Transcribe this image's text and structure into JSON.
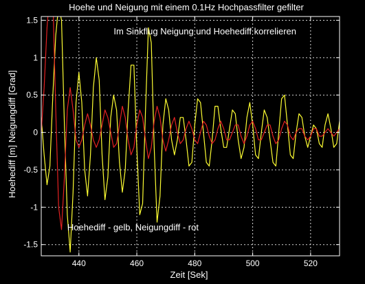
{
  "chart_data": {
    "type": "line",
    "title": "Hoehe und Neigung mit einem 0.1Hz Hochpassfilter gefilter",
    "xlabel": "Zeit [Sek]",
    "ylabel": "Hoehediff [m] Neigungdiff [Grad]",
    "xlim": [
      427,
      530
    ],
    "ylim": [
      -1.65,
      1.55
    ],
    "grid": true,
    "x_ticks": [
      440,
      460,
      480,
      500,
      520
    ],
    "y_ticks": [
      -1.5,
      -1,
      -0.5,
      0,
      0.5,
      1,
      1.5
    ],
    "x_tick_labels": [
      "440",
      "460",
      "480",
      "500",
      "520"
    ],
    "y_tick_labels": [
      "-1.5",
      "-1",
      "-0.5",
      "0",
      "0.5",
      "1",
      "1.5"
    ],
    "annotations": [
      {
        "text": "Im Sinkflug Neigung und Hoehediff korrelieren",
        "x": 452,
        "y": 1.31
      },
      {
        "text": "Hoehediff - gelb,   Neigungdiff - rot",
        "x": 436,
        "y": -1.31
      }
    ],
    "series": [
      {
        "color": "#ffff33",
        "x": [
          427,
          428,
          429,
          430,
          431,
          432,
          433,
          434,
          435,
          436,
          437,
          438,
          439,
          440,
          441,
          442,
          443,
          444,
          445,
          446,
          447,
          448,
          449,
          450,
          451,
          452,
          453,
          454,
          455,
          456,
          457,
          458,
          459,
          460,
          461,
          462,
          463,
          464,
          465,
          466,
          467,
          468,
          469,
          470,
          471,
          472,
          473,
          474,
          475,
          476,
          477,
          478,
          479,
          480,
          481,
          482,
          483,
          484,
          485,
          486,
          487,
          488,
          489,
          490,
          491,
          492,
          493,
          494,
          495,
          496,
          497,
          498,
          499,
          500,
          501,
          502,
          503,
          504,
          505,
          506,
          507,
          508,
          509,
          510,
          511,
          512,
          513,
          514,
          515,
          516,
          517,
          518,
          519,
          520,
          521,
          522,
          523,
          524,
          525,
          526,
          527,
          528,
          529,
          530
        ],
        "y": [
          0.2,
          -0.3,
          -0.7,
          -0.45,
          0.5,
          1.3,
          1.7,
          1.5,
          0.1,
          -1.1,
          -1.6,
          -0.8,
          0.4,
          0.8,
          0.4,
          -0.5,
          -0.85,
          -0.3,
          0.6,
          1.0,
          0.7,
          -0.3,
          -0.9,
          -0.6,
          0.2,
          0.5,
          0.3,
          -0.4,
          -0.8,
          -0.5,
          0.3,
          0.9,
          0.9,
          -0.2,
          -1.1,
          -0.95,
          0.3,
          1.4,
          1.2,
          -0.2,
          -1.2,
          -0.85,
          0.1,
          0.45,
          0.3,
          -0.1,
          -0.3,
          -0.1,
          0.2,
          0.2,
          -0.1,
          -0.45,
          -0.4,
          0.1,
          0.45,
          0.4,
          0.0,
          -0.4,
          -0.45,
          -0.1,
          0.35,
          0.35,
          0.05,
          -0.2,
          -0.2,
          0.05,
          0.3,
          0.25,
          -0.1,
          -0.35,
          -0.2,
          0.2,
          0.4,
          0.1,
          -0.3,
          -0.35,
          0.0,
          0.3,
          0.2,
          -0.1,
          -0.4,
          -0.45,
          0.0,
          0.45,
          0.5,
          0.1,
          -0.3,
          -0.35,
          0.0,
          0.25,
          0.2,
          -0.05,
          -0.2,
          -0.05,
          0.1,
          0.05,
          -0.15,
          -0.2,
          0.1,
          0.25,
          0.05,
          -0.2,
          -0.15,
          0.15
        ]
      },
      {
        "color": "#e52222",
        "x": [
          427,
          428,
          429,
          430,
          431,
          432,
          433,
          434,
          435,
          436,
          437,
          438,
          439,
          440,
          441,
          442,
          443,
          444,
          445,
          446,
          447,
          448,
          449,
          450,
          451,
          452,
          453,
          454,
          455,
          456,
          457,
          458,
          459,
          460,
          461,
          462,
          463,
          464,
          465,
          466,
          467,
          468,
          469,
          470,
          471,
          472,
          473,
          474,
          475,
          476,
          477,
          478,
          479,
          480,
          481,
          482,
          483,
          484,
          485,
          486,
          487,
          488,
          489,
          490,
          491,
          492,
          493,
          494,
          495,
          496,
          497,
          498,
          499,
          500,
          501,
          502,
          503,
          504,
          505,
          506,
          507,
          508,
          509,
          510,
          511,
          512,
          513,
          514,
          515,
          516,
          517,
          518,
          519,
          520,
          521,
          522,
          523,
          524,
          525,
          526,
          527,
          528,
          529,
          530
        ],
        "y": [
          0.0,
          0.6,
          1.4,
          1.9,
          1.8,
          0.3,
          -1.0,
          -1.3,
          -0.6,
          0.3,
          0.6,
          0.3,
          -0.1,
          -0.2,
          -0.1,
          0.1,
          0.25,
          0.1,
          -0.1,
          -0.2,
          -0.1,
          0.1,
          0.3,
          0.2,
          0.0,
          -0.2,
          -0.15,
          0.1,
          0.35,
          0.2,
          -0.1,
          -0.3,
          -0.2,
          0.1,
          0.3,
          0.2,
          -0.1,
          -0.35,
          -0.2,
          0.15,
          0.35,
          0.2,
          -0.1,
          -0.25,
          -0.1,
          0.1,
          0.2,
          0.0,
          -0.15,
          -0.1,
          0.05,
          0.15,
          0.05,
          -0.1,
          -0.15,
          0.0,
          0.15,
          0.1,
          -0.05,
          -0.15,
          -0.1,
          0.05,
          0.15,
          0.05,
          -0.1,
          -0.1,
          0.0,
          0.1,
          0.1,
          -0.05,
          -0.15,
          -0.05,
          0.1,
          0.15,
          0.05,
          -0.1,
          -0.1,
          0.0,
          0.1,
          0.1,
          -0.05,
          -0.15,
          -0.1,
          0.05,
          0.15,
          0.1,
          -0.05,
          -0.1,
          0.0,
          0.05,
          0.05,
          -0.05,
          -0.1,
          -0.05,
          0.05,
          0.05,
          -0.05,
          -0.05,
          0.0,
          0.05,
          0.0,
          -0.05,
          0.0,
          0.05
        ]
      }
    ]
  }
}
